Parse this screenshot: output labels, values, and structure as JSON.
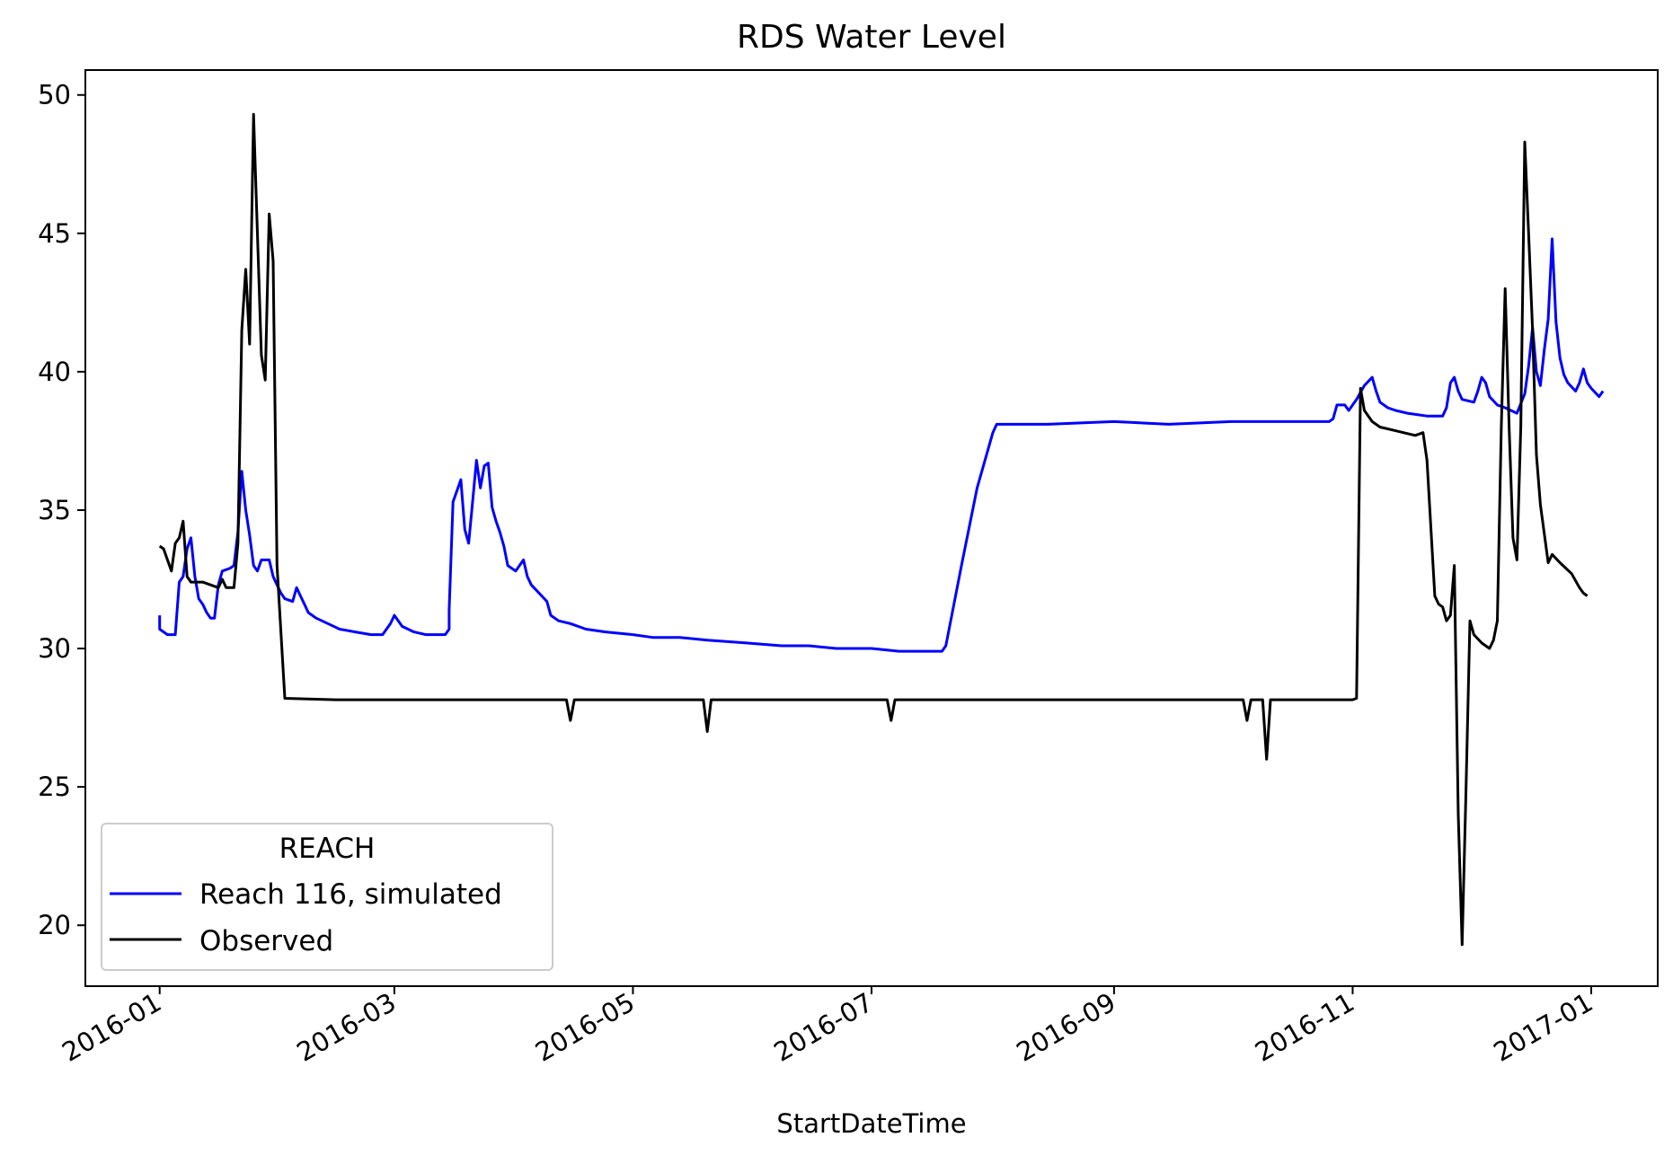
{
  "chart_data": {
    "type": "line",
    "title": "RDS Water Level",
    "xlabel": "StartDateTime",
    "ylabel": "",
    "x_tick_labels": [
      "2016-01",
      "2016-03",
      "2016-05",
      "2016-07",
      "2016-09",
      "2016-11",
      "2017-01"
    ],
    "x_ticks": [
      "2016-01-01",
      "2016-03-01",
      "2016-05-01",
      "2016-07-01",
      "2016-09-01",
      "2016-11-01",
      "2017-01-01"
    ],
    "y_ticks": [
      20,
      25,
      30,
      35,
      40,
      45,
      50
    ],
    "xlim": [
      "2015-12-13",
      "2017-01-18"
    ],
    "ylim": [
      17.8,
      50.9
    ],
    "grid": false,
    "legend": {
      "title": "REACH",
      "position": "lower-left"
    },
    "colors": {
      "simulated": "#0000ff",
      "observed": "#000000"
    },
    "series": [
      {
        "name": "Reach 116, simulated",
        "color": "#0000ff",
        "points": [
          [
            "2016-01-01",
            31.2
          ],
          [
            "2016-01-01",
            30.7
          ],
          [
            "2016-01-02",
            30.6
          ],
          [
            "2016-01-03",
            30.5
          ],
          [
            "2016-01-05",
            30.5
          ],
          [
            "2016-01-06",
            32.4
          ],
          [
            "2016-01-07",
            32.6
          ],
          [
            "2016-01-08",
            33.6
          ],
          [
            "2016-01-09",
            34.0
          ],
          [
            "2016-01-10",
            32.6
          ],
          [
            "2016-01-11",
            31.8
          ],
          [
            "2016-01-12",
            31.6
          ],
          [
            "2016-01-13",
            31.3
          ],
          [
            "2016-01-14",
            31.1
          ],
          [
            "2016-01-15",
            31.1
          ],
          [
            "2016-01-16",
            32.3
          ],
          [
            "2016-01-17",
            32.8
          ],
          [
            "2016-01-19",
            32.9
          ],
          [
            "2016-01-20",
            33.0
          ],
          [
            "2016-01-21",
            34.2
          ],
          [
            "2016-01-22",
            36.4
          ],
          [
            "2016-01-23",
            35.0
          ],
          [
            "2016-01-24",
            34.1
          ],
          [
            "2016-01-25",
            33.0
          ],
          [
            "2016-01-26",
            32.8
          ],
          [
            "2016-01-27",
            33.2
          ],
          [
            "2016-01-29",
            33.2
          ],
          [
            "2016-01-30",
            32.6
          ],
          [
            "2016-01-31",
            32.3
          ],
          [
            "2016-02-01",
            32.0
          ],
          [
            "2016-02-02",
            31.8
          ],
          [
            "2016-02-04",
            31.7
          ],
          [
            "2016-02-05",
            32.2
          ],
          [
            "2016-02-06",
            31.9
          ],
          [
            "2016-02-07",
            31.6
          ],
          [
            "2016-02-08",
            31.3
          ],
          [
            "2016-02-10",
            31.1
          ],
          [
            "2016-02-13",
            30.9
          ],
          [
            "2016-02-16",
            30.7
          ],
          [
            "2016-02-20",
            30.6
          ],
          [
            "2016-02-24",
            30.5
          ],
          [
            "2016-02-27",
            30.5
          ],
          [
            "2016-02-29",
            30.9
          ],
          [
            "2016-03-01",
            31.2
          ],
          [
            "2016-03-03",
            30.8
          ],
          [
            "2016-03-06",
            30.6
          ],
          [
            "2016-03-09",
            30.5
          ],
          [
            "2016-03-14",
            30.5
          ],
          [
            "2016-03-15",
            30.7
          ],
          [
            "2016-03-15",
            31.4
          ],
          [
            "2016-03-16",
            35.3
          ],
          [
            "2016-03-17",
            35.7
          ],
          [
            "2016-03-18",
            36.1
          ],
          [
            "2016-03-19",
            34.3
          ],
          [
            "2016-03-20",
            33.8
          ],
          [
            "2016-03-21",
            35.3
          ],
          [
            "2016-03-22",
            36.8
          ],
          [
            "2016-03-23",
            35.8
          ],
          [
            "2016-03-24",
            36.6
          ],
          [
            "2016-03-25",
            36.7
          ],
          [
            "2016-03-26",
            35.1
          ],
          [
            "2016-03-27",
            34.6
          ],
          [
            "2016-03-28",
            34.2
          ],
          [
            "2016-03-29",
            33.7
          ],
          [
            "2016-03-30",
            33.0
          ],
          [
            "2016-04-01",
            32.8
          ],
          [
            "2016-04-03",
            33.2
          ],
          [
            "2016-04-04",
            32.6
          ],
          [
            "2016-04-05",
            32.3
          ],
          [
            "2016-04-07",
            32.0
          ],
          [
            "2016-04-09",
            31.7
          ],
          [
            "2016-04-10",
            31.2
          ],
          [
            "2016-04-12",
            31.0
          ],
          [
            "2016-04-15",
            30.9
          ],
          [
            "2016-04-19",
            30.7
          ],
          [
            "2016-04-24",
            30.6
          ],
          [
            "2016-05-01",
            30.5
          ],
          [
            "2016-05-06",
            30.4
          ],
          [
            "2016-05-13",
            30.4
          ],
          [
            "2016-05-20",
            30.3
          ],
          [
            "2016-05-30",
            30.2
          ],
          [
            "2016-06-08",
            30.1
          ],
          [
            "2016-06-15",
            30.1
          ],
          [
            "2016-06-22",
            30.0
          ],
          [
            "2016-07-01",
            30.0
          ],
          [
            "2016-07-08",
            29.9
          ],
          [
            "2016-07-19",
            29.9
          ],
          [
            "2016-07-20",
            30.1
          ],
          [
            "2016-07-24",
            33.0
          ],
          [
            "2016-07-28",
            35.8
          ],
          [
            "2016-08-01",
            37.8
          ],
          [
            "2016-08-02",
            38.1
          ],
          [
            "2016-08-15",
            38.1
          ],
          [
            "2016-09-01",
            38.2
          ],
          [
            "2016-09-15",
            38.1
          ],
          [
            "2016-10-01",
            38.2
          ],
          [
            "2016-10-15",
            38.2
          ],
          [
            "2016-10-26",
            38.2
          ],
          [
            "2016-10-27",
            38.3
          ],
          [
            "2016-10-28",
            38.8
          ],
          [
            "2016-10-30",
            38.8
          ],
          [
            "2016-10-31",
            38.6
          ],
          [
            "2016-11-02",
            39.0
          ],
          [
            "2016-11-04",
            39.5
          ],
          [
            "2016-11-06",
            39.8
          ],
          [
            "2016-11-07",
            39.3
          ],
          [
            "2016-11-08",
            38.9
          ],
          [
            "2016-11-10",
            38.7
          ],
          [
            "2016-11-12",
            38.6
          ],
          [
            "2016-11-15",
            38.5
          ],
          [
            "2016-11-20",
            38.4
          ],
          [
            "2016-11-24",
            38.4
          ],
          [
            "2016-11-25",
            38.7
          ],
          [
            "2016-11-26",
            39.6
          ],
          [
            "2016-11-27",
            39.8
          ],
          [
            "2016-11-28",
            39.3
          ],
          [
            "2016-11-29",
            39.0
          ],
          [
            "2016-12-02",
            38.9
          ],
          [
            "2016-12-03",
            39.3
          ],
          [
            "2016-12-04",
            39.8
          ],
          [
            "2016-12-05",
            39.6
          ],
          [
            "2016-12-06",
            39.1
          ],
          [
            "2016-12-08",
            38.8
          ],
          [
            "2016-12-10",
            38.7
          ],
          [
            "2016-12-13",
            38.5
          ],
          [
            "2016-12-15",
            39.2
          ],
          [
            "2016-12-16",
            40.2
          ],
          [
            "2016-12-17",
            41.6
          ],
          [
            "2016-12-18",
            40.0
          ],
          [
            "2016-12-19",
            39.5
          ],
          [
            "2016-12-20",
            40.8
          ],
          [
            "2016-12-21",
            41.9
          ],
          [
            "2016-12-22",
            44.8
          ],
          [
            "2016-12-23",
            41.8
          ],
          [
            "2016-12-24",
            40.5
          ],
          [
            "2016-12-25",
            39.9
          ],
          [
            "2016-12-26",
            39.6
          ],
          [
            "2016-12-28",
            39.3
          ],
          [
            "2016-12-29",
            39.6
          ],
          [
            "2016-12-30",
            40.1
          ],
          [
            "2016-12-31",
            39.6
          ],
          [
            "2017-01-01",
            39.4
          ],
          [
            "2017-01-03",
            39.1
          ],
          [
            "2017-01-04",
            39.3
          ]
        ]
      },
      {
        "name": "Observed",
        "color": "#000000",
        "points": [
          [
            "2016-01-01",
            33.7
          ],
          [
            "2016-01-02",
            33.6
          ],
          [
            "2016-01-03",
            33.2
          ],
          [
            "2016-01-04",
            32.8
          ],
          [
            "2016-01-05",
            33.8
          ],
          [
            "2016-01-06",
            34.0
          ],
          [
            "2016-01-07",
            34.6
          ],
          [
            "2016-01-08",
            32.6
          ],
          [
            "2016-01-09",
            32.4
          ],
          [
            "2016-01-12",
            32.4
          ],
          [
            "2016-01-14",
            32.3
          ],
          [
            "2016-01-16",
            32.2
          ],
          [
            "2016-01-17",
            32.5
          ],
          [
            "2016-01-18",
            32.2
          ],
          [
            "2016-01-20",
            32.2
          ],
          [
            "2016-01-21",
            33.8
          ],
          [
            "2016-01-22",
            41.5
          ],
          [
            "2016-01-23",
            43.7
          ],
          [
            "2016-01-24",
            41.0
          ],
          [
            "2016-01-25",
            49.3
          ],
          [
            "2016-01-26",
            45.0
          ],
          [
            "2016-01-27",
            40.6
          ],
          [
            "2016-01-28",
            39.7
          ],
          [
            "2016-01-29",
            45.7
          ],
          [
            "2016-01-30",
            44.0
          ],
          [
            "2016-01-31",
            33.0
          ],
          [
            "2016-02-02",
            28.2
          ],
          [
            "2016-02-15",
            28.15
          ],
          [
            "2016-03-01",
            28.15
          ],
          [
            "2016-04-01",
            28.15
          ],
          [
            "2016-04-14",
            28.15
          ],
          [
            "2016-04-15",
            27.4
          ],
          [
            "2016-04-16",
            28.15
          ],
          [
            "2016-05-01",
            28.15
          ],
          [
            "2016-05-19",
            28.15
          ],
          [
            "2016-05-20",
            27.0
          ],
          [
            "2016-05-21",
            28.15
          ],
          [
            "2016-06-15",
            28.15
          ],
          [
            "2016-07-05",
            28.15
          ],
          [
            "2016-07-06",
            27.4
          ],
          [
            "2016-07-07",
            28.15
          ],
          [
            "2016-08-15",
            28.15
          ],
          [
            "2016-09-15",
            28.15
          ],
          [
            "2016-10-04",
            28.15
          ],
          [
            "2016-10-05",
            27.4
          ],
          [
            "2016-10-06",
            28.15
          ],
          [
            "2016-10-08",
            28.15
          ],
          [
            "2016-10-09",
            28.15
          ],
          [
            "2016-10-10",
            26.0
          ],
          [
            "2016-10-11",
            28.15
          ],
          [
            "2016-10-20",
            28.15
          ],
          [
            "2016-11-01",
            28.15
          ],
          [
            "2016-11-02",
            28.2
          ],
          [
            "2016-11-03",
            39.4
          ],
          [
            "2016-11-04",
            38.6
          ],
          [
            "2016-11-06",
            38.2
          ],
          [
            "2016-11-08",
            38.0
          ],
          [
            "2016-11-11",
            37.9
          ],
          [
            "2016-11-14",
            37.8
          ],
          [
            "2016-11-17",
            37.7
          ],
          [
            "2016-11-19",
            37.8
          ],
          [
            "2016-11-20",
            36.8
          ],
          [
            "2016-11-22",
            31.9
          ],
          [
            "2016-11-23",
            31.6
          ],
          [
            "2016-11-24",
            31.5
          ],
          [
            "2016-11-25",
            31.0
          ],
          [
            "2016-11-26",
            31.2
          ],
          [
            "2016-11-27",
            33.0
          ],
          [
            "2016-11-28",
            24.0
          ],
          [
            "2016-11-29",
            19.3
          ],
          [
            "2016-11-30",
            25.0
          ],
          [
            "2016-12-01",
            31.0
          ],
          [
            "2016-12-02",
            30.5
          ],
          [
            "2016-12-04",
            30.2
          ],
          [
            "2016-12-06",
            30.0
          ],
          [
            "2016-12-07",
            30.3
          ],
          [
            "2016-12-08",
            31.0
          ],
          [
            "2016-12-09",
            38.0
          ],
          [
            "2016-12-10",
            43.0
          ],
          [
            "2016-12-11",
            38.0
          ],
          [
            "2016-12-12",
            34.0
          ],
          [
            "2016-12-13",
            33.2
          ],
          [
            "2016-12-14",
            38.0
          ],
          [
            "2016-12-15",
            48.3
          ],
          [
            "2016-12-16",
            45.0
          ],
          [
            "2016-12-17",
            41.5
          ],
          [
            "2016-12-18",
            37.0
          ],
          [
            "2016-12-19",
            35.2
          ],
          [
            "2016-12-21",
            33.1
          ],
          [
            "2016-12-22",
            33.4
          ],
          [
            "2016-12-24",
            33.1
          ],
          [
            "2016-12-27",
            32.7
          ],
          [
            "2016-12-29",
            32.2
          ],
          [
            "2016-12-30",
            32.0
          ],
          [
            "2016-12-31",
            31.9
          ]
        ]
      }
    ]
  }
}
